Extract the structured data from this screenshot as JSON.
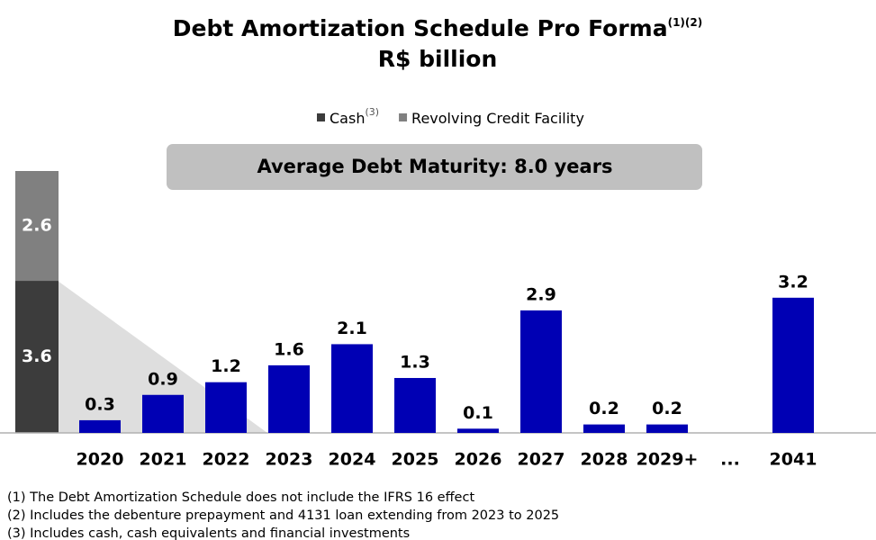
{
  "chart_data": {
    "type": "bar",
    "title": "Debt Amortization Schedule Pro Forma",
    "title_note": "(1)(2)",
    "subtitle": "R$ billion",
    "annotation": "Average Debt Maturity: 8.0 years",
    "categories": [
      "2020",
      "2021",
      "2022",
      "2023",
      "2024",
      "2025",
      "2026",
      "2027",
      "2028",
      "2029+",
      "...",
      "2041"
    ],
    "values": [
      0.3,
      0.9,
      1.2,
      1.6,
      2.1,
      1.3,
      0.1,
      2.9,
      0.2,
      0.2,
      null,
      3.2
    ],
    "color": "#0000b4",
    "liquidity": {
      "series": [
        {
          "name": "Cash",
          "name_note": "(3)",
          "color": "#3c3c3c",
          "value": 3.6
        },
        {
          "name": "Revolving Credit Facility",
          "color": "#808080",
          "value": 2.6
        }
      ]
    },
    "ylim": [
      0,
      6.2
    ],
    "footnotes": [
      "(1) The Debt Amortization Schedule does not include the IFRS 16 effect",
      "(2) Includes the debenture prepayment and 4131 loan extending from 2023 to 2025",
      "(3) Includes cash, cash equivalents and financial investments"
    ]
  }
}
